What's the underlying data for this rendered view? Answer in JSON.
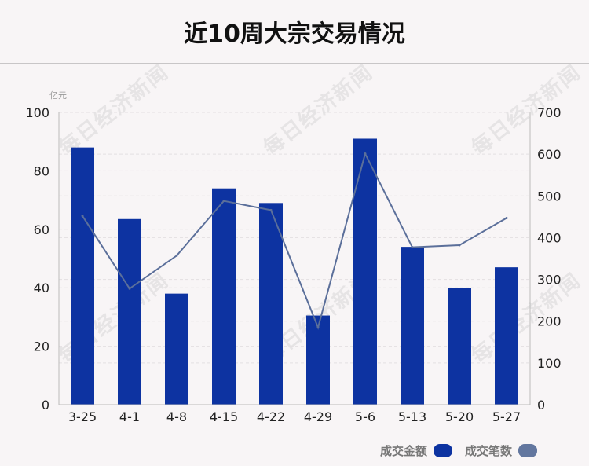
{
  "title": "近10周大宗交易情况",
  "watermark": "每日经济新闻",
  "colors": {
    "bar": "#0d33a1",
    "line": "#5b6f9a",
    "grid": "#e3e0e2",
    "axis": "#bbbbbb",
    "legend_line_swatch": "#63779f"
  },
  "legend": {
    "bars_label": "成交金额",
    "line_label": "成交笔数",
    "placement": "bottom-right"
  },
  "chart_data": {
    "type": "bar",
    "title": "近10周大宗交易情况",
    "categories": [
      "3-25",
      "4-1",
      "4-8",
      "4-15",
      "4-22",
      "4-29",
      "5-6",
      "5-13",
      "5-20",
      "5-27"
    ],
    "y_left": {
      "unit": "亿元",
      "lim": [
        0,
        100
      ],
      "ticks": [
        0,
        20,
        40,
        60,
        80,
        100
      ]
    },
    "y_right": {
      "lim": [
        0,
        700
      ],
      "ticks": [
        0,
        100,
        200,
        300,
        400,
        500,
        600,
        700
      ]
    },
    "series": [
      {
        "name": "成交金额",
        "type": "bar",
        "axis": "left",
        "values": [
          88,
          63.5,
          38,
          74,
          69,
          30.5,
          91,
          54,
          40,
          47
        ]
      },
      {
        "name": "成交笔数",
        "type": "line",
        "axis": "right",
        "values": [
          452,
          278,
          357,
          488,
          466,
          185,
          601,
          377,
          382,
          447
        ]
      }
    ],
    "grid": true
  }
}
